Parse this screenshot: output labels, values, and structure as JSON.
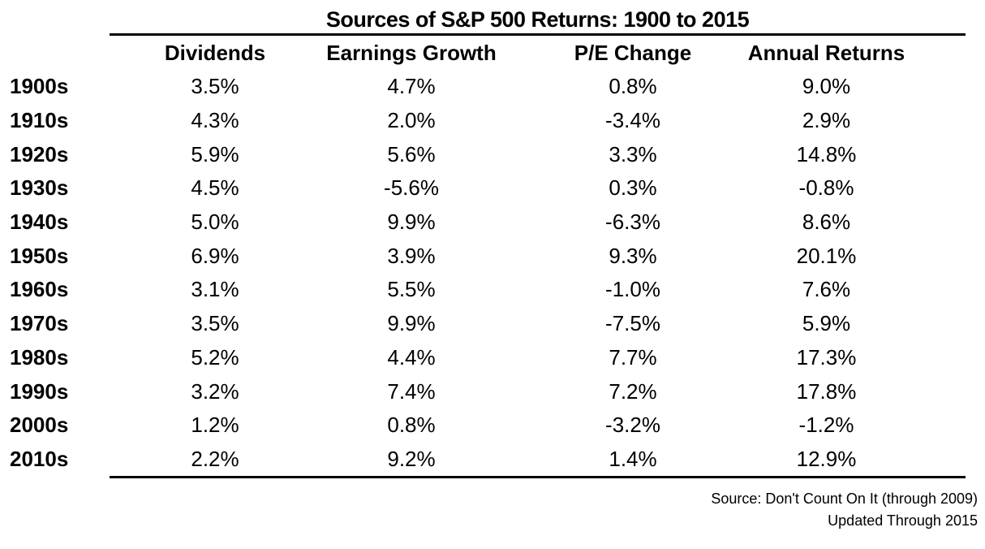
{
  "title": "Sources of S&P 500 Returns: 1900 to 2015",
  "table": {
    "columns": [
      "Dividends",
      "Earnings Growth",
      "P/E Change",
      "Annual Returns"
    ],
    "rows": [
      {
        "decade": "1900s",
        "cells": [
          "3.5%",
          "4.7%",
          "0.8%",
          "9.0%"
        ]
      },
      {
        "decade": "1910s",
        "cells": [
          "4.3%",
          "2.0%",
          "-3.4%",
          "2.9%"
        ]
      },
      {
        "decade": "1920s",
        "cells": [
          "5.9%",
          "5.6%",
          "3.3%",
          "14.8%"
        ]
      },
      {
        "decade": "1930s",
        "cells": [
          "4.5%",
          "-5.6%",
          "0.3%",
          "-0.8%"
        ]
      },
      {
        "decade": "1940s",
        "cells": [
          "5.0%",
          "9.9%",
          "-6.3%",
          "8.6%"
        ]
      },
      {
        "decade": "1950s",
        "cells": [
          "6.9%",
          "3.9%",
          "9.3%",
          "20.1%"
        ]
      },
      {
        "decade": "1960s",
        "cells": [
          "3.1%",
          "5.5%",
          "-1.0%",
          "7.6%"
        ]
      },
      {
        "decade": "1970s",
        "cells": [
          "3.5%",
          "9.9%",
          "-7.5%",
          "5.9%"
        ]
      },
      {
        "decade": "1980s",
        "cells": [
          "5.2%",
          "4.4%",
          "7.7%",
          "17.3%"
        ]
      },
      {
        "decade": "1990s",
        "cells": [
          "3.2%",
          "7.4%",
          "7.2%",
          "17.8%"
        ]
      },
      {
        "decade": "2000s",
        "cells": [
          "1.2%",
          "0.8%",
          "-3.2%",
          "-1.2%"
        ]
      },
      {
        "decade": "2010s",
        "cells": [
          "2.2%",
          "9.2%",
          "1.4%",
          "12.9%"
        ]
      }
    ]
  },
  "footer": {
    "source": "Source: Don't Count On It (through 2009)",
    "updated": "Updated Through 2015"
  },
  "colors": {
    "background": "#ffffff",
    "text": "#000000",
    "rule": "#000000"
  },
  "chart_data": {
    "type": "table",
    "title": "Sources of S&P 500 Returns: 1900 to 2015",
    "row_labels": [
      "1900s",
      "1910s",
      "1920s",
      "1930s",
      "1940s",
      "1950s",
      "1960s",
      "1970s",
      "1980s",
      "1990s",
      "2000s",
      "2010s"
    ],
    "columns": [
      "Dividends",
      "Earnings Growth",
      "P/E Change",
      "Annual Returns"
    ],
    "series": [
      {
        "name": "Dividends",
        "values": [
          3.5,
          4.3,
          5.9,
          4.5,
          5.0,
          6.9,
          3.1,
          3.5,
          5.2,
          3.2,
          1.2,
          2.2
        ]
      },
      {
        "name": "Earnings Growth",
        "values": [
          4.7,
          2.0,
          5.6,
          -5.6,
          9.9,
          3.9,
          5.5,
          9.9,
          4.4,
          7.4,
          0.8,
          9.2
        ]
      },
      {
        "name": "P/E Change",
        "values": [
          0.8,
          -3.4,
          3.3,
          0.3,
          -6.3,
          9.3,
          -1.0,
          -7.5,
          7.7,
          7.2,
          -3.2,
          1.4
        ]
      },
      {
        "name": "Annual Returns",
        "values": [
          9.0,
          2.9,
          14.8,
          -0.8,
          8.6,
          20.1,
          7.6,
          5.9,
          17.3,
          17.8,
          -1.2,
          12.9
        ]
      }
    ],
    "units": "%",
    "annotations": [
      "Source: Don't Count On It (through 2009)",
      "Updated Through 2015"
    ]
  }
}
